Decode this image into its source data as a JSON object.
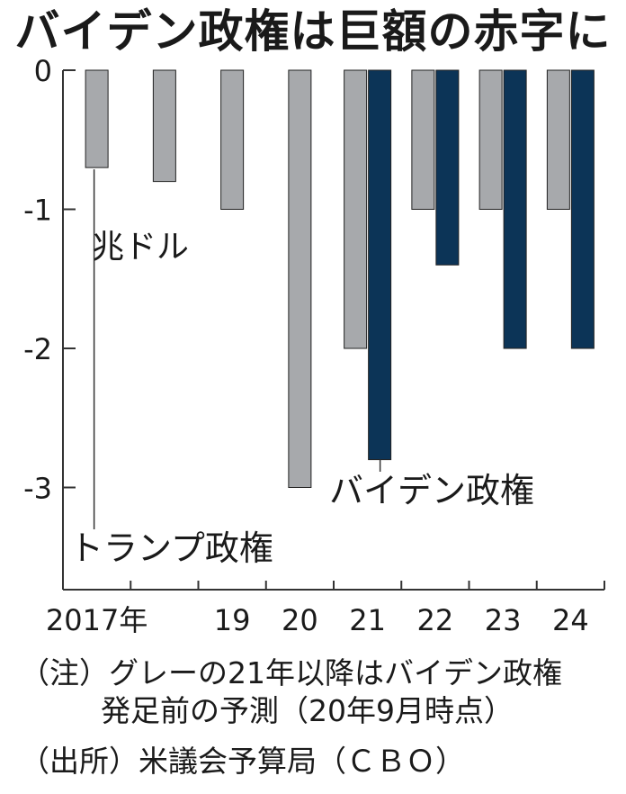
{
  "chart_data": {
    "type": "bar",
    "title": "バイデン政権は巨額の赤字に",
    "unit_label": "兆ドル",
    "ylim": [
      -3.7,
      0
    ],
    "y_ticks": [
      0,
      -1,
      -2,
      -3
    ],
    "y_tick_labels": [
      "0",
      "-1",
      "-2",
      "-3"
    ],
    "categories": [
      "2017",
      "2018",
      "2019",
      "2020",
      "2021",
      "2022",
      "2023",
      "2024"
    ],
    "x_tick_labels": [
      "2017年",
      "",
      "19",
      "20",
      "21",
      "22",
      "23",
      "24"
    ],
    "series": [
      {
        "name": "トランプ政権",
        "color": "#a7a9ac",
        "values": [
          -0.7,
          -0.8,
          -1.0,
          -3.0,
          -2.0,
          -1.0,
          -1.0,
          -1.0
        ]
      },
      {
        "name": "バイデン政権",
        "color": "#0c3457",
        "values": [
          null,
          null,
          null,
          null,
          -2.8,
          -1.4,
          -2.0,
          -2.0
        ]
      }
    ],
    "grid": false
  },
  "notes": {
    "line1": "（注）グレーの21年以降はバイデン政権",
    "line2": "発足前の予測（20年9月時点）",
    "source": "（出所）米議会予算局（ＣＢＯ）"
  }
}
